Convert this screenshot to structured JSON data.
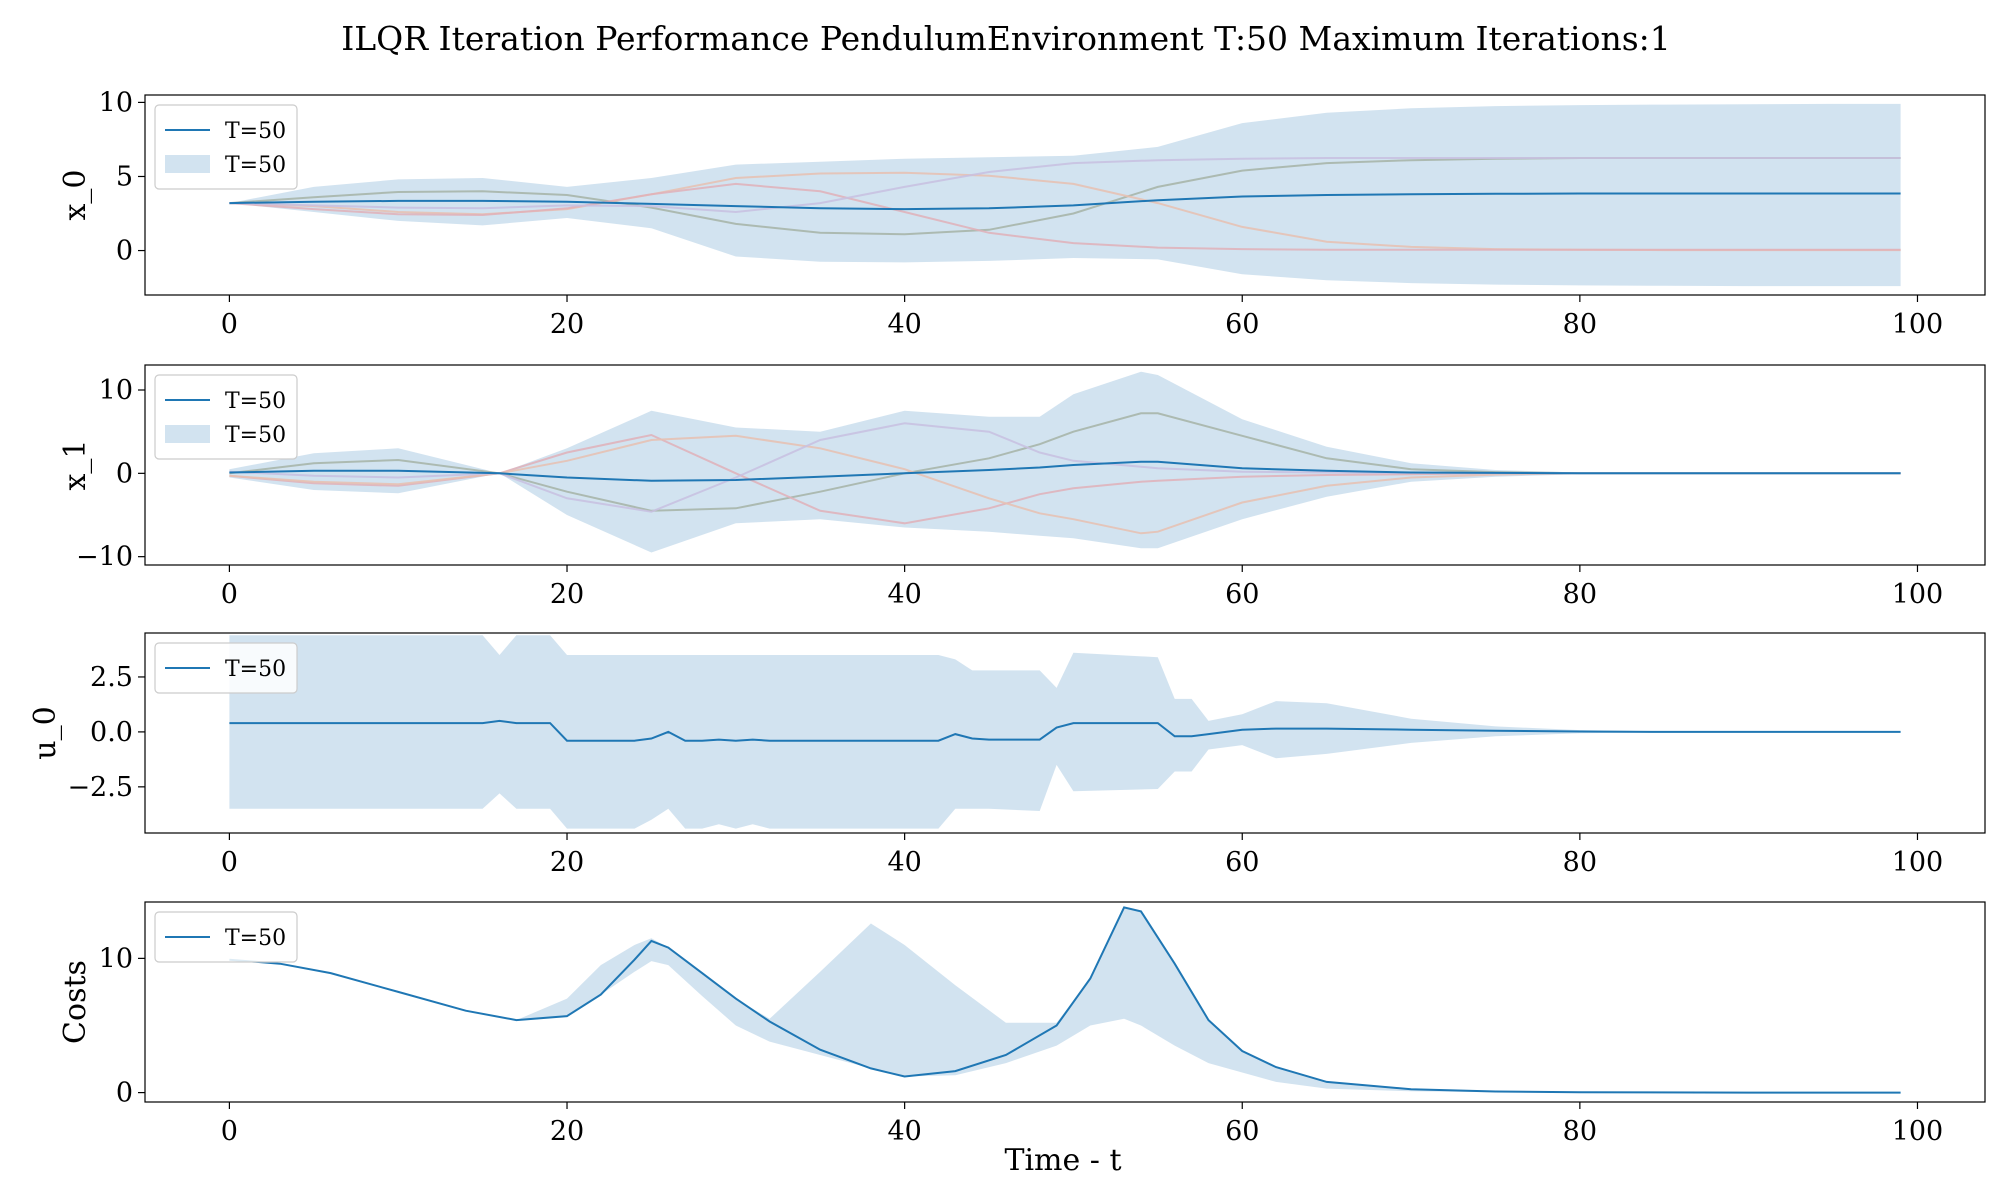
{
  "title": "ILQR Iteration Performance PendulumEnvironment T:50 Maximum Iterations:1",
  "xlabel": "Time - t",
  "colors": {
    "line": "#1f77b4",
    "band": "#a6c8e2"
  },
  "chart_data": [
    {
      "type": "line",
      "ylabel": "x_0",
      "xlim": [
        -5,
        104
      ],
      "ylim": [
        -3,
        10.5
      ],
      "xticks": [
        0,
        20,
        40,
        60,
        80,
        100
      ],
      "yticks": [
        0,
        5,
        10
      ],
      "ytick_labels": [
        "0",
        "5",
        "10"
      ],
      "legend": {
        "placement": "upper-left",
        "entries": [
          {
            "label": "T=50",
            "kind": "line"
          },
          {
            "label": "T=50",
            "kind": "band"
          }
        ]
      },
      "x": [
        0,
        5,
        10,
        15,
        20,
        25,
        30,
        35,
        40,
        45,
        50,
        55,
        60,
        65,
        70,
        75,
        80,
        85,
        90,
        95,
        99
      ],
      "series": [
        {
          "values": [
            3.2,
            3.3,
            3.35,
            3.35,
            3.3,
            3.15,
            3.0,
            2.85,
            2.8,
            2.85,
            3.05,
            3.4,
            3.65,
            3.75,
            3.8,
            3.83,
            3.85,
            3.85,
            3.85,
            3.85,
            3.85
          ]
        }
      ],
      "band": {
        "upper": [
          3.2,
          4.3,
          4.8,
          4.9,
          4.3,
          4.9,
          5.8,
          6.0,
          6.2,
          6.3,
          6.4,
          7.0,
          8.6,
          9.3,
          9.6,
          9.75,
          9.82,
          9.85,
          9.88,
          9.9,
          9.9
        ],
        "lower": [
          3.2,
          2.6,
          2.0,
          1.7,
          2.2,
          1.5,
          -0.4,
          -0.75,
          -0.8,
          -0.7,
          -0.5,
          -0.6,
          -1.6,
          -2.0,
          -2.2,
          -2.3,
          -2.35,
          -2.38,
          -2.4,
          -2.4,
          -2.4
        ]
      },
      "faint_traces": [
        {
          "color": "#a6b3a6",
          "values": [
            3.2,
            3.6,
            3.95,
            4.0,
            3.75,
            2.9,
            1.8,
            1.2,
            1.1,
            1.4,
            2.5,
            4.3,
            5.4,
            5.9,
            6.1,
            6.2,
            6.25,
            6.25,
            6.25,
            6.25,
            6.25
          ]
        },
        {
          "color": "#e8c0b0",
          "values": [
            3.2,
            3.0,
            2.6,
            2.45,
            2.8,
            3.8,
            4.9,
            5.2,
            5.25,
            5.05,
            4.5,
            3.2,
            1.6,
            0.6,
            0.25,
            0.1,
            0.05,
            0.03,
            0.03,
            0.03,
            0.03
          ]
        },
        {
          "color": "#e0b0b8",
          "values": [
            3.2,
            2.8,
            2.45,
            2.4,
            2.85,
            3.8,
            4.5,
            4.0,
            2.6,
            1.2,
            0.5,
            0.2,
            0.1,
            0.05,
            0.05,
            0.05,
            0.05,
            0.05,
            0.05,
            0.05,
            0.05
          ]
        },
        {
          "color": "#c8c0e0",
          "values": [
            3.2,
            3.05,
            2.9,
            2.85,
            3.05,
            3.0,
            2.6,
            3.2,
            4.3,
            5.3,
            5.9,
            6.1,
            6.2,
            6.25,
            6.25,
            6.25,
            6.25,
            6.25,
            6.25,
            6.25,
            6.25
          ]
        }
      ]
    },
    {
      "type": "line",
      "ylabel": "x_1",
      "xlim": [
        -5,
        104
      ],
      "ylim": [
        -11,
        13
      ],
      "xticks": [
        0,
        20,
        40,
        60,
        80,
        100
      ],
      "yticks": [
        -10,
        0,
        10
      ],
      "ytick_labels": [
        "−10",
        "0",
        "10"
      ],
      "legend": {
        "placement": "upper-left",
        "entries": [
          {
            "label": "T=50",
            "kind": "line"
          },
          {
            "label": "T=50",
            "kind": "band"
          }
        ]
      },
      "x": [
        0,
        5,
        10,
        16,
        20,
        25,
        30,
        35,
        40,
        45,
        48,
        50,
        54,
        55,
        60,
        65,
        70,
        75,
        80,
        85,
        90,
        95,
        99
      ],
      "series": [
        {
          "values": [
            0.1,
            0.3,
            0.3,
            0.0,
            -0.5,
            -0.9,
            -0.8,
            -0.4,
            0.0,
            0.4,
            0.7,
            1.0,
            1.4,
            1.4,
            0.6,
            0.3,
            0.1,
            0.05,
            0.0,
            0.0,
            0.0,
            0.0,
            0.0
          ]
        }
      ],
      "band": {
        "upper": [
          0.5,
          2.4,
          3.0,
          0.0,
          3.0,
          7.5,
          5.5,
          5.0,
          7.5,
          6.8,
          6.8,
          9.5,
          12.2,
          11.8,
          6.5,
          3.2,
          1.2,
          0.4,
          0.1,
          0.03,
          0.0,
          0.0,
          0.0
        ],
        "lower": [
          -0.5,
          -2.0,
          -2.4,
          0.0,
          -5.0,
          -9.5,
          -6.0,
          -5.5,
          -6.5,
          -7.0,
          -7.5,
          -7.8,
          -9.0,
          -9.0,
          -5.5,
          -2.8,
          -1.0,
          -0.4,
          -0.1,
          -0.03,
          0.0,
          0.0,
          0.0
        ]
      },
      "faint_traces": [
        {
          "color": "#a6b3a6",
          "values": [
            0.0,
            1.2,
            1.6,
            0.0,
            -2.2,
            -4.5,
            -4.2,
            -2.2,
            0.0,
            1.8,
            3.5,
            5.0,
            7.2,
            7.2,
            4.5,
            1.8,
            0.5,
            0.15,
            0.0,
            0.0,
            0.0,
            0.0,
            0.0
          ]
        },
        {
          "color": "#e0b0b8",
          "values": [
            -0.3,
            -1.2,
            -1.5,
            0.0,
            2.5,
            4.6,
            0.0,
            -4.5,
            -6.0,
            -4.2,
            -2.5,
            -1.8,
            -1.0,
            -0.9,
            -0.4,
            -0.2,
            -0.1,
            0.0,
            0.0,
            0.0,
            0.0,
            0.0,
            0.0
          ]
        },
        {
          "color": "#e8c0b0",
          "values": [
            -0.3,
            -1.0,
            -1.3,
            0.0,
            1.5,
            4.0,
            4.5,
            3.0,
            0.5,
            -3.0,
            -4.8,
            -5.5,
            -7.2,
            -7.0,
            -3.5,
            -1.5,
            -0.5,
            -0.15,
            0.0,
            0.0,
            0.0,
            0.0,
            0.0
          ]
        },
        {
          "color": "#c8c0e0",
          "values": [
            0.2,
            -0.3,
            -0.5,
            0.0,
            -3.0,
            -4.6,
            -0.5,
            4.0,
            6.0,
            5.0,
            2.5,
            1.5,
            0.8,
            0.6,
            0.2,
            0.1,
            0.05,
            0.0,
            0.0,
            0.0,
            0.0,
            0.0,
            0.0
          ]
        }
      ]
    },
    {
      "type": "line",
      "ylabel": "u_0",
      "xlim": [
        -5,
        104
      ],
      "ylim": [
        -4.6,
        4.5
      ],
      "xticks": [
        0,
        20,
        40,
        60,
        80,
        100
      ],
      "yticks": [
        -2.5,
        0,
        2.5
      ],
      "ytick_labels": [
        "−2.5",
        "0.0",
        "2.5"
      ],
      "legend": {
        "placement": "upper-left",
        "entries": [
          {
            "label": "T=50",
            "kind": "line"
          }
        ]
      },
      "x": [
        0,
        15,
        16,
        17,
        19,
        20,
        24,
        25,
        26,
        27,
        28,
        29,
        30,
        31,
        32,
        42,
        43,
        44,
        45,
        48,
        49,
        50,
        55,
        56,
        57,
        58,
        60,
        62,
        65,
        70,
        75,
        80,
        85,
        90,
        95,
        99
      ],
      "series": [
        {
          "values": [
            0.4,
            0.4,
            0.5,
            0.4,
            0.4,
            -0.4,
            -0.4,
            -0.3,
            0.0,
            -0.4,
            -0.4,
            -0.35,
            -0.4,
            -0.35,
            -0.4,
            -0.4,
            -0.1,
            -0.3,
            -0.35,
            -0.35,
            0.2,
            0.4,
            0.4,
            -0.2,
            -0.2,
            -0.1,
            0.1,
            0.15,
            0.15,
            0.1,
            0.05,
            0.02,
            0.0,
            0.0,
            0.0,
            0.0
          ]
        }
      ],
      "band": {
        "upper": [
          4.4,
          4.4,
          3.5,
          4.4,
          4.4,
          3.5,
          3.5,
          3.5,
          3.5,
          3.5,
          3.5,
          3.5,
          3.5,
          3.5,
          3.5,
          3.5,
          3.3,
          2.8,
          2.8,
          2.8,
          2.0,
          3.6,
          3.4,
          1.5,
          1.5,
          0.5,
          0.8,
          1.4,
          1.3,
          0.6,
          0.25,
          0.08,
          0.02,
          0.0,
          0.0,
          0.0
        ],
        "lower": [
          -3.5,
          -3.5,
          -2.8,
          -3.5,
          -3.5,
          -4.4,
          -4.4,
          -4.0,
          -3.5,
          -4.4,
          -4.4,
          -4.2,
          -4.4,
          -4.2,
          -4.4,
          -4.4,
          -3.5,
          -3.5,
          -3.5,
          -3.6,
          -1.5,
          -2.7,
          -2.6,
          -1.8,
          -1.8,
          -0.8,
          -0.6,
          -1.2,
          -1.0,
          -0.5,
          -0.2,
          -0.06,
          -0.02,
          0.0,
          0.0,
          0.0
        ]
      }
    },
    {
      "type": "line",
      "ylabel": "Costs",
      "xlim": [
        -5,
        104
      ],
      "ylim": [
        -0.7,
        14.2
      ],
      "xticks": [
        0,
        20,
        40,
        60,
        80,
        100
      ],
      "yticks": [
        0,
        10
      ],
      "ytick_labels": [
        "0",
        "10"
      ],
      "legend": {
        "placement": "upper-left",
        "entries": [
          {
            "label": "T=50",
            "kind": "line"
          }
        ]
      },
      "x": [
        0,
        3,
        6,
        10,
        14,
        17,
        20,
        22,
        24,
        25,
        26,
        28,
        30,
        32,
        35,
        38,
        40,
        43,
        46,
        49,
        51,
        53,
        54,
        56,
        58,
        60,
        62,
        65,
        70,
        75,
        80,
        90,
        99
      ],
      "series": [
        {
          "values": [
            9.9,
            9.6,
            8.9,
            7.5,
            6.1,
            5.4,
            5.7,
            7.3,
            9.9,
            11.3,
            10.8,
            8.9,
            7.0,
            5.3,
            3.2,
            1.8,
            1.2,
            1.6,
            2.8,
            5.0,
            8.5,
            13.8,
            13.5,
            9.6,
            5.4,
            3.1,
            1.9,
            0.8,
            0.25,
            0.08,
            0.03,
            0.0,
            0.0
          ]
        }
      ],
      "band": {
        "upper": [
          9.9,
          9.6,
          8.9,
          7.5,
          6.1,
          5.4,
          7.0,
          9.5,
          11.0,
          11.5,
          10.8,
          8.9,
          7.0,
          5.5,
          9.0,
          12.6,
          11.0,
          8.0,
          5.2,
          5.2,
          8.5,
          13.8,
          13.5,
          9.6,
          5.4,
          3.1,
          1.9,
          0.8,
          0.25,
          0.08,
          0.03,
          0.0,
          0.0
        ],
        "lower": [
          9.9,
          9.6,
          8.9,
          7.5,
          6.1,
          5.4,
          5.7,
          7.3,
          9.0,
          9.8,
          9.5,
          7.2,
          5.0,
          3.8,
          2.8,
          1.8,
          1.2,
          1.3,
          2.2,
          3.5,
          5.0,
          5.5,
          5.0,
          3.5,
          2.2,
          1.5,
          0.8,
          0.3,
          0.1,
          0.03,
          0.01,
          0.0,
          0.0
        ]
      }
    }
  ]
}
